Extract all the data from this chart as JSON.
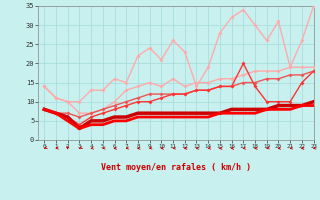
{
  "xlabel": "Vent moyen/en rafales ( km/h )",
  "xlim": [
    -0.5,
    23
  ],
  "ylim": [
    0,
    35
  ],
  "xticks": [
    0,
    1,
    2,
    3,
    4,
    5,
    6,
    7,
    8,
    9,
    10,
    11,
    12,
    13,
    14,
    15,
    16,
    17,
    18,
    19,
    20,
    21,
    22,
    23
  ],
  "yticks": [
    0,
    5,
    10,
    15,
    20,
    25,
    30,
    35
  ],
  "bg_color": "#c8f0ee",
  "grid_color": "#aadddd",
  "lines": [
    {
      "x": [
        0,
        1,
        2,
        3,
        4,
        5,
        6,
        7,
        8,
        9,
        10,
        11,
        12,
        13,
        14,
        15,
        16,
        17,
        18,
        19,
        20,
        21,
        22,
        23
      ],
      "y": [
        14,
        11,
        10,
        10,
        13,
        13,
        16,
        15,
        22,
        24,
        21,
        26,
        23,
        14,
        19,
        28,
        32,
        34,
        30,
        26,
        31,
        19,
        26,
        35
      ],
      "color": "#ffaaaa",
      "lw": 1.0,
      "marker": "D",
      "ms": 2.0,
      "zorder": 3
    },
    {
      "x": [
        0,
        1,
        2,
        3,
        4,
        5,
        6,
        7,
        8,
        9,
        10,
        11,
        12,
        13,
        14,
        15,
        16,
        17,
        18,
        19,
        20,
        21,
        22,
        23
      ],
      "y": [
        14,
        11,
        10,
        7,
        7,
        8,
        10,
        13,
        14,
        15,
        14,
        16,
        14,
        15,
        15,
        16,
        16,
        17,
        18,
        18,
        18,
        19,
        19,
        19
      ],
      "color": "#ffaaaa",
      "lw": 1.0,
      "marker": "D",
      "ms": 2.0,
      "zorder": 4
    },
    {
      "x": [
        0,
        1,
        2,
        3,
        4,
        5,
        6,
        7,
        8,
        9,
        10,
        11,
        12,
        13,
        14,
        15,
        16,
        17,
        18,
        19,
        20,
        21,
        22,
        23
      ],
      "y": [
        8,
        7,
        7,
        6,
        7,
        8,
        9,
        10,
        11,
        12,
        12,
        12,
        12,
        13,
        13,
        14,
        14,
        15,
        15,
        16,
        16,
        17,
        17,
        18
      ],
      "color": "#ee5555",
      "lw": 1.0,
      "marker": "D",
      "ms": 2.0,
      "zorder": 5
    },
    {
      "x": [
        0,
        1,
        2,
        3,
        4,
        5,
        6,
        7,
        8,
        9,
        10,
        11,
        12,
        13,
        14,
        15,
        16,
        17,
        18,
        19,
        20,
        21,
        22,
        23
      ],
      "y": [
        8,
        7,
        6,
        4,
        6,
        7,
        8,
        9,
        10,
        10,
        11,
        12,
        12,
        13,
        13,
        14,
        14,
        20,
        14,
        10,
        10,
        10,
        15,
        18
      ],
      "color": "#ff3333",
      "lw": 1.0,
      "marker": "D",
      "ms": 2.0,
      "zorder": 6
    },
    {
      "x": [
        0,
        1,
        2,
        3,
        4,
        5,
        6,
        7,
        8,
        9,
        10,
        11,
        12,
        13,
        14,
        15,
        16,
        17,
        18,
        19,
        20,
        21,
        22,
        23
      ],
      "y": [
        8,
        7,
        6,
        3,
        5,
        5,
        6,
        6,
        7,
        7,
        7,
        7,
        7,
        7,
        7,
        7,
        8,
        8,
        8,
        8,
        9,
        9,
        9,
        10
      ],
      "color": "#cc0000",
      "lw": 2.5,
      "marker": null,
      "ms": 0,
      "zorder": 7
    },
    {
      "x": [
        0,
        1,
        2,
        3,
        4,
        5,
        6,
        7,
        8,
        9,
        10,
        11,
        12,
        13,
        14,
        15,
        16,
        17,
        18,
        19,
        20,
        21,
        22,
        23
      ],
      "y": [
        8,
        7,
        5,
        3,
        4,
        4,
        5,
        5,
        6,
        6,
        6,
        6,
        6,
        6,
        6,
        7,
        7,
        7,
        7,
        8,
        8,
        8,
        9,
        9
      ],
      "color": "#ff0000",
      "lw": 2.0,
      "marker": null,
      "ms": 0,
      "zorder": 8
    }
  ],
  "arrow_color": "#cc0000",
  "arrow_angles_deg": [
    225,
    210,
    270,
    225,
    210,
    210,
    195,
    210,
    200,
    210,
    200,
    210,
    200,
    205,
    210,
    195,
    195,
    205,
    200,
    215,
    200,
    210,
    195,
    210
  ]
}
